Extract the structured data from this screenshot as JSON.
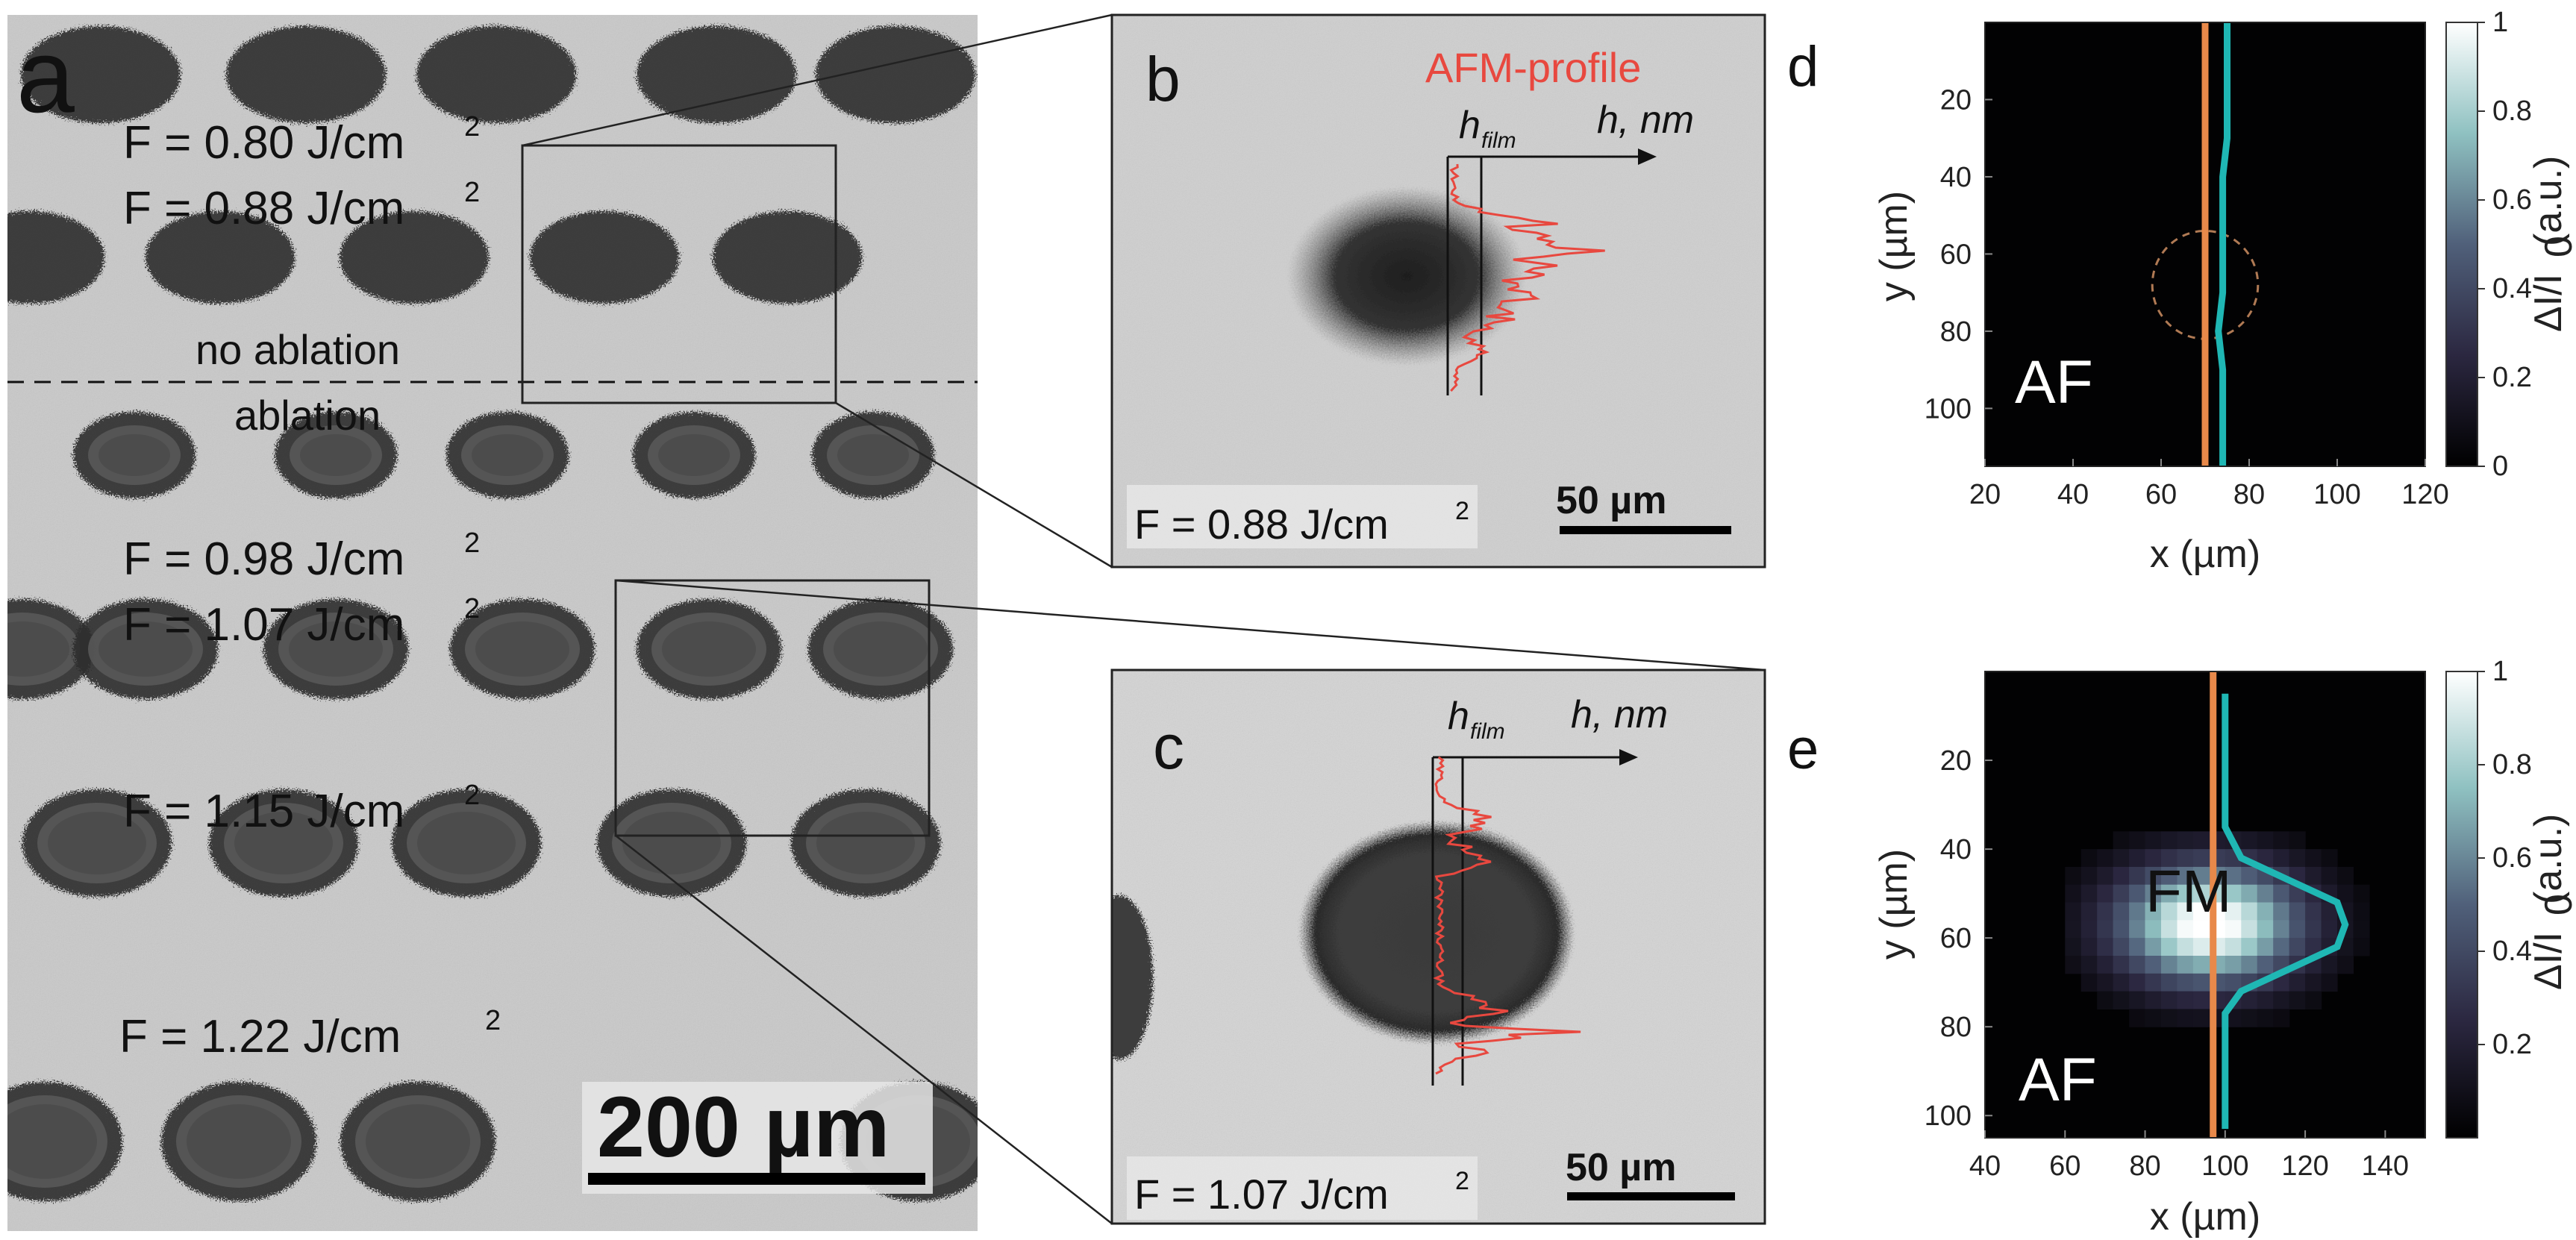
{
  "panel_a": {
    "letter": "a",
    "fluence_labels": [
      "F = 0.80 J/cm",
      "F = 0.88 J/cm",
      "F = 0.98 J/cm",
      "F = 1.07 J/cm",
      "F = 1.15 J/cm",
      "F =  1.22 J/cm"
    ],
    "exponent": "2",
    "no_ablation": "no ablation",
    "ablation": "ablation",
    "scale_bar": "200 µm"
  },
  "panel_b": {
    "letter": "b",
    "afm_label": "AFM-profile",
    "h_film_base": "h",
    "h_film_sub": "film",
    "h_axis": "h, nm",
    "fluence": "F = 0.88 J/cm",
    "exponent": "2",
    "scale_bar": "50 µm"
  },
  "panel_c": {
    "letter": "c",
    "h_film_base": "h",
    "h_film_sub": "film",
    "h_axis": "h, nm",
    "fluence": "F = 1.07 J/cm",
    "exponent": "2",
    "scale_bar": "50 µm"
  },
  "panel_d": {
    "letter": "d",
    "region_label": "AF",
    "xlabel": "x (µm)",
    "ylabel": "y (µm)",
    "x_ticks": [
      "20",
      "40",
      "60",
      "80",
      "100",
      "120"
    ],
    "y_ticks": [
      "20",
      "40",
      "60",
      "80",
      "100"
    ],
    "cbar_ticks": [
      "0",
      "0.2",
      "0.4",
      "0.6",
      "0.8",
      "1"
    ],
    "cbar_label": "ΔI/I",
    "cbar_label_sub": "0",
    "cbar_label_unit": " (a.u.)"
  },
  "panel_e": {
    "letter": "e",
    "region_label_af": "AF",
    "region_label_fm": "FM",
    "xlabel": "x (µm)",
    "ylabel": "y (µm)",
    "x_ticks": [
      "40",
      "60",
      "80",
      "100",
      "120",
      "140"
    ],
    "y_ticks": [
      "20",
      "40",
      "60",
      "80",
      "100"
    ],
    "cbar_ticks": [
      "0.2",
      "0.4",
      "0.6",
      "0.8",
      "1"
    ],
    "cbar_label": "ΔI/I",
    "cbar_label_sub": "0",
    "cbar_label_unit": " (a.u.)"
  },
  "colors": {
    "afm_profile": "#e8483f",
    "cut_line": "#e8894a",
    "profile_curve": "#1fb7b4",
    "map_background": "#000000",
    "micrograph_bg": "#c8c8c8"
  },
  "chart_data": [
    {
      "type": "heatmap",
      "panel": "d",
      "xlim": [
        20,
        120
      ],
      "ylim": [
        0,
        115
      ],
      "y_axis": "inverted",
      "colorbar": [
        0,
        1
      ],
      "colormap": "black-blue-cyan-white",
      "cut_line_x": 70,
      "signal_max": 0.05,
      "profile_x": [
        75,
        75,
        75,
        75,
        74,
        74,
        74,
        74,
        74,
        73,
        74,
        74,
        74
      ]
    },
    {
      "type": "heatmap",
      "panel": "e",
      "xlim": [
        40,
        150
      ],
      "ylim": [
        0,
        105
      ],
      "y_axis": "inverted",
      "colorbar": [
        0,
        1
      ],
      "colormap": "black-blue-cyan-white",
      "cut_line_x": 97,
      "fm_center": [
        96,
        57
      ],
      "profile_y": [
        5,
        20,
        35,
        42,
        47,
        52,
        57,
        62,
        67,
        72,
        77,
        90,
        103
      ],
      "profile_x": [
        100,
        100,
        100,
        104,
        116,
        128,
        130,
        128,
        116,
        104,
        100,
        100,
        100
      ]
    }
  ]
}
